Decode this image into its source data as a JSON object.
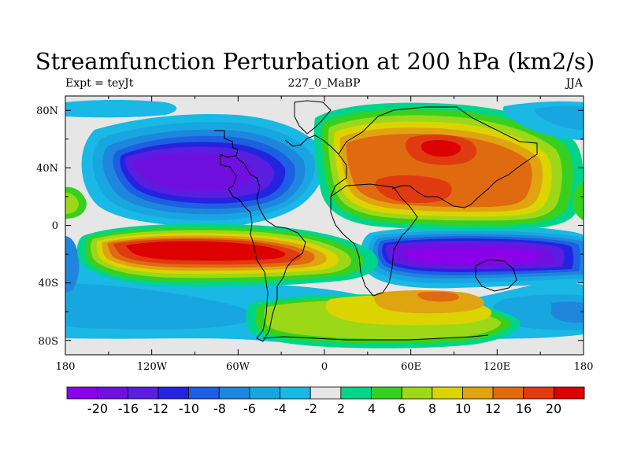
{
  "title": "Streamfunction Perturbation at 200 hPa (km2/s)",
  "left_label": "Expt = teyJt",
  "center_label": "227_0_MaBP",
  "right_label": "JJA",
  "y_ticks": [
    "80N",
    "40N",
    "0",
    "40S",
    "80S"
  ],
  "x_ticks": [
    "180",
    "120W",
    "60W",
    "0",
    "60E",
    "120E",
    "180"
  ],
  "colorbar": {
    "levels": [
      "-20",
      "-16",
      "-12",
      "-10",
      "-8",
      "-6",
      "-4",
      "-2",
      "2",
      "4",
      "6",
      "8",
      "10",
      "12",
      "16",
      "20"
    ],
    "colors": [
      "#8a00e8",
      "#7010e0",
      "#5a1ee0",
      "#2424e0",
      "#1d5fe2",
      "#1e86dc",
      "#18a6e0",
      "#1ab8e4",
      "#e6e6e6",
      "#00d48a",
      "#38d020",
      "#9cd818",
      "#dcd400",
      "#e0a410",
      "#e06a10",
      "#e03a10",
      "#dc0000"
    ]
  },
  "colors": {
    "background": "#e6e6e6",
    "outline": "#000000"
  }
}
